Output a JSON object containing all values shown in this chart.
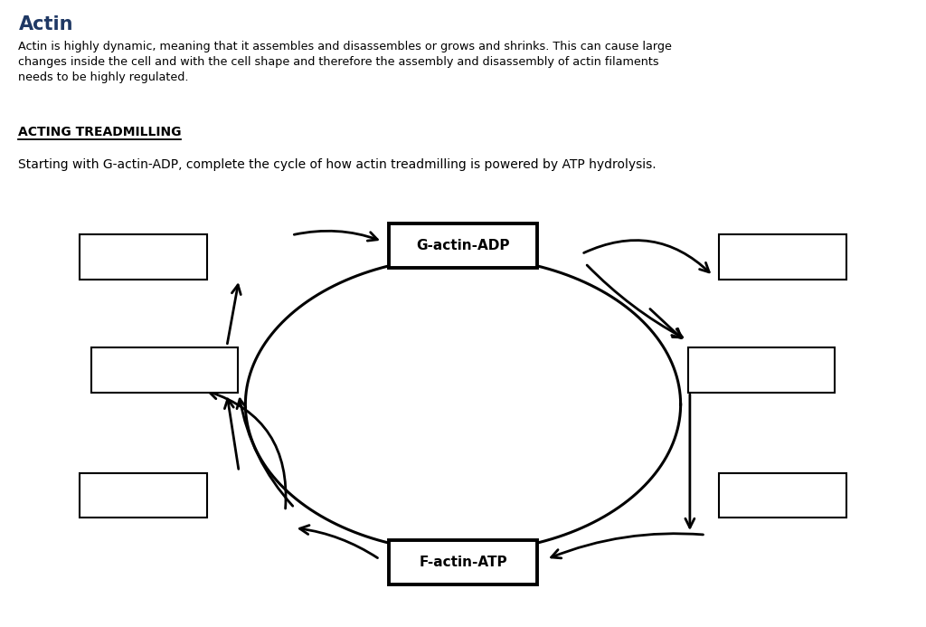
{
  "title": "Actin",
  "title_color": "#1f3864",
  "description": "Actin is highly dynamic, meaning that it assembles and disassembles or grows and shrinks. This can cause large\nchanges inside the cell and with the cell shape and therefore the assembly and disassembly of actin filaments\nneeds to be highly regulated.",
  "subtitle": "ACTING TREADMILLING",
  "question": "Starting with G-actin-ADP, complete the cycle of how actin treadmilling is powered by ATP hydrolysis.",
  "g_actin_label": "G-actin-ADP",
  "f_actin_label": "F-actin-ATP",
  "background_color": "#ffffff"
}
